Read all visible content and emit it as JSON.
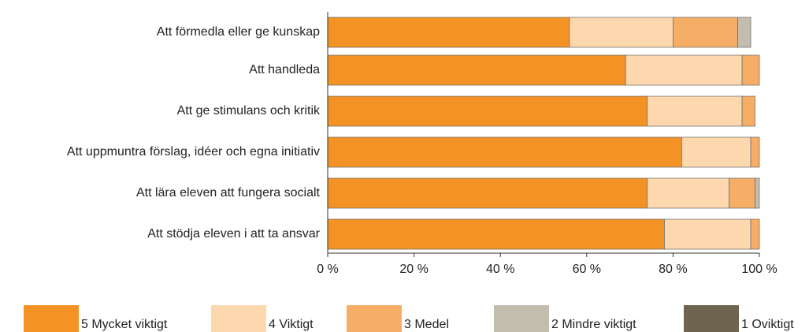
{
  "chart_data": {
    "type": "stacked_barh",
    "categories": [
      "Att förmedla eller ge kunskap",
      "Att handleda",
      "Att ge stimulans och kritik",
      "Att uppmuntra förslag, idéer och egna initiativ",
      "Att lära eleven att fungera socialt",
      "Att stödja eleven i att ta ansvar"
    ],
    "series": [
      {
        "name": "5 Mycket viktigt",
        "color": "#f39325",
        "values": [
          56,
          69,
          74,
          82,
          74,
          78
        ]
      },
      {
        "name": "4 Viktigt",
        "color": "#fdd7ae",
        "values": [
          24,
          27,
          22,
          16,
          19,
          20
        ]
      },
      {
        "name": "3 Medel",
        "color": "#f6ae66",
        "values": [
          15,
          4,
          3,
          2,
          6,
          2
        ]
      },
      {
        "name": "2 Mindre viktigt",
        "color": "#c3bdb0",
        "values": [
          3,
          0,
          0,
          0,
          1,
          0
        ]
      },
      {
        "name": "1 Oviktigt",
        "color": "#6e6450",
        "values": [
          0,
          0,
          0,
          0,
          0,
          0
        ]
      }
    ],
    "xlim": [
      0,
      100
    ],
    "xticks": [
      {
        "value": 0,
        "label": "0 %"
      },
      {
        "value": 20,
        "label": "20 %"
      },
      {
        "value": 40,
        "label": "40 %"
      },
      {
        "value": 60,
        "label": "60 %"
      },
      {
        "value": 80,
        "label": "80 %"
      },
      {
        "value": 100,
        "label": "100 %"
      }
    ]
  }
}
